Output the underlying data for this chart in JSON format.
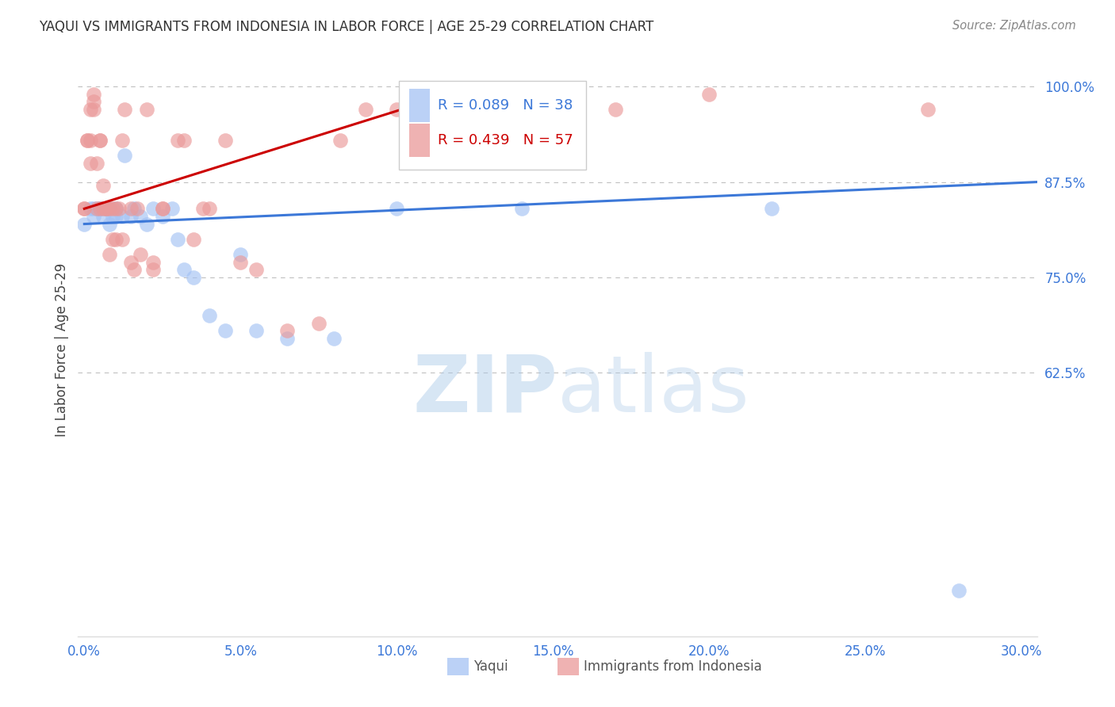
{
  "title": "YAQUI VS IMMIGRANTS FROM INDONESIA IN LABOR FORCE | AGE 25-29 CORRELATION CHART",
  "source": "Source: ZipAtlas.com",
  "ylabel": "In Labor Force | Age 25-29",
  "xlim": [
    -0.002,
    0.305
  ],
  "ylim": [
    0.28,
    1.03
  ],
  "xticks": [
    0.0,
    0.05,
    0.1,
    0.15,
    0.2,
    0.25,
    0.3
  ],
  "xticklabels": [
    "0.0%",
    "5.0%",
    "10.0%",
    "15.0%",
    "20.0%",
    "25.0%",
    "30.0%"
  ],
  "yticks": [
    0.625,
    0.75,
    0.875,
    1.0
  ],
  "yticklabels": [
    "62.5%",
    "75.0%",
    "87.5%",
    "100.0%"
  ],
  "blue_color": "#a4c2f4",
  "pink_color": "#ea9999",
  "blue_line_color": "#3c78d8",
  "pink_line_color": "#cc0000",
  "legend_blue_R": "R = 0.089",
  "legend_blue_N": "N = 38",
  "legend_pink_R": "R = 0.439",
  "legend_pink_N": "N = 57",
  "watermark_ZIP": "ZIP",
  "watermark_atlas": "atlas",
  "blue_scatter_x": [
    0.0,
    0.002,
    0.003,
    0.003,
    0.004,
    0.005,
    0.005,
    0.006,
    0.006,
    0.007,
    0.007,
    0.008,
    0.008,
    0.009,
    0.01,
    0.01,
    0.012,
    0.013,
    0.015,
    0.016,
    0.018,
    0.02,
    0.022,
    0.025,
    0.028,
    0.03,
    0.032,
    0.035,
    0.04,
    0.045,
    0.05,
    0.055,
    0.065,
    0.08,
    0.1,
    0.14,
    0.22,
    0.28
  ],
  "blue_scatter_y": [
    0.82,
    0.84,
    0.84,
    0.83,
    0.84,
    0.84,
    0.84,
    0.83,
    0.84,
    0.84,
    0.84,
    0.84,
    0.82,
    0.83,
    0.84,
    0.83,
    0.83,
    0.91,
    0.83,
    0.84,
    0.83,
    0.82,
    0.84,
    0.83,
    0.84,
    0.8,
    0.76,
    0.75,
    0.7,
    0.68,
    0.78,
    0.68,
    0.67,
    0.67,
    0.84,
    0.84,
    0.84,
    0.34
  ],
  "pink_scatter_x": [
    0.0,
    0.0,
    0.001,
    0.001,
    0.002,
    0.002,
    0.002,
    0.003,
    0.003,
    0.003,
    0.004,
    0.004,
    0.005,
    0.005,
    0.005,
    0.006,
    0.006,
    0.007,
    0.007,
    0.008,
    0.008,
    0.009,
    0.009,
    0.01,
    0.01,
    0.011,
    0.012,
    0.012,
    0.013,
    0.015,
    0.015,
    0.016,
    0.017,
    0.018,
    0.02,
    0.022,
    0.022,
    0.025,
    0.025,
    0.03,
    0.032,
    0.035,
    0.038,
    0.04,
    0.045,
    0.05,
    0.055,
    0.065,
    0.075,
    0.082,
    0.09,
    0.1,
    0.12,
    0.14,
    0.17,
    0.2,
    0.27
  ],
  "pink_scatter_y": [
    0.84,
    0.84,
    0.93,
    0.93,
    0.9,
    0.93,
    0.97,
    0.97,
    0.98,
    0.99,
    0.84,
    0.9,
    0.84,
    0.93,
    0.93,
    0.84,
    0.87,
    0.84,
    0.84,
    0.84,
    0.78,
    0.84,
    0.8,
    0.8,
    0.84,
    0.84,
    0.8,
    0.93,
    0.97,
    0.84,
    0.77,
    0.76,
    0.84,
    0.78,
    0.97,
    0.76,
    0.77,
    0.84,
    0.84,
    0.93,
    0.93,
    0.8,
    0.84,
    0.84,
    0.93,
    0.77,
    0.76,
    0.68,
    0.69,
    0.93,
    0.97,
    0.97,
    0.99,
    0.99,
    0.97,
    0.99,
    0.97
  ],
  "blue_trendline_x": [
    0.0,
    0.305
  ],
  "blue_trendline_y": [
    0.82,
    0.875
  ],
  "pink_trendline_x": [
    0.0,
    0.125
  ],
  "pink_trendline_y": [
    0.84,
    1.0
  ],
  "background_color": "#ffffff",
  "grid_color": "#c0c0c0",
  "tick_color": "#3c78d8",
  "ylabel_color": "#444444",
  "title_color": "#333333",
  "source_color": "#888888"
}
